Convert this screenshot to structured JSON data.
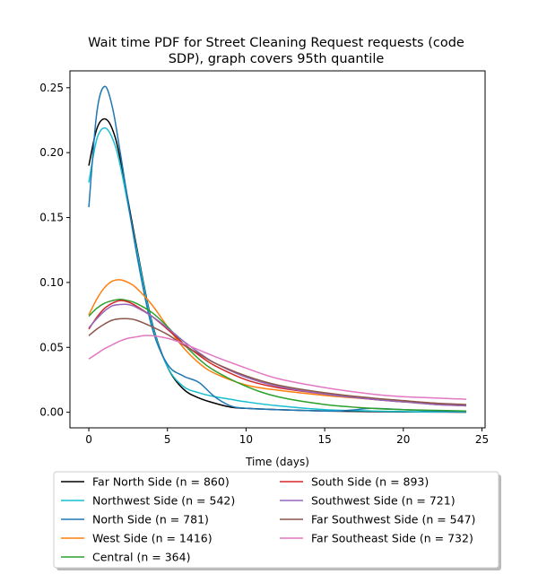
{
  "chart_data": {
    "type": "line",
    "title_lines": [
      "Wait time PDF for Street Cleaning Request  requests (code",
      "SDP), graph covers 95th quantile"
    ],
    "xlabel": "Time (days)",
    "ylabel": "",
    "xlim": [
      -1.2,
      25.2
    ],
    "ylim": [
      -0.012,
      0.263
    ],
    "xticks": [
      0,
      5,
      10,
      15,
      20,
      25
    ],
    "yticks": [
      0.0,
      0.05,
      0.1,
      0.15,
      0.2,
      0.25
    ],
    "xtick_labels": [
      "0",
      "5",
      "10",
      "15",
      "20",
      "25"
    ],
    "ytick_labels": [
      "0.00",
      "0.05",
      "0.10",
      "0.15",
      "0.20",
      "0.25"
    ],
    "grid": false,
    "legend_position": "below",
    "legend_columns": 2,
    "series": [
      {
        "name": "Far North Side (n = 860)",
        "color": "#000000",
        "x": [
          0,
          0.5,
          1,
          1.5,
          2,
          3,
          4,
          5,
          6,
          7,
          8,
          9,
          10,
          12,
          15,
          18,
          20,
          22,
          24
        ],
        "y": [
          0.19,
          0.218,
          0.226,
          0.218,
          0.195,
          0.13,
          0.07,
          0.035,
          0.018,
          0.011,
          0.007,
          0.004,
          0.003,
          0.002,
          0.001,
          0.0005,
          0.0003,
          0.0002,
          0.0001
        ]
      },
      {
        "name": "Northwest Side (n = 542)",
        "color": "#17becf",
        "x": [
          0,
          0.5,
          1,
          1.5,
          2,
          3,
          4,
          5,
          6,
          7,
          8,
          9,
          10,
          12,
          15,
          18,
          20,
          22,
          24
        ],
        "y": [
          0.177,
          0.21,
          0.219,
          0.211,
          0.19,
          0.128,
          0.069,
          0.035,
          0.02,
          0.015,
          0.012,
          0.01,
          0.008,
          0.005,
          0.002,
          0.001,
          0.0005,
          0.0003,
          0.0002
        ]
      },
      {
        "name": "North Side (n = 781)",
        "color": "#1f77b4",
        "x": [
          0,
          0.5,
          1,
          1.5,
          2,
          3,
          4,
          5,
          6,
          7,
          8,
          9,
          10,
          12,
          15,
          16,
          17,
          18,
          20,
          22,
          24
        ],
        "y": [
          0.158,
          0.23,
          0.251,
          0.235,
          0.2,
          0.125,
          0.066,
          0.037,
          0.028,
          0.023,
          0.012,
          0.005,
          0.003,
          0.002,
          0.001,
          0.001,
          0.002,
          0.003,
          0.002,
          0.001,
          0.0005
        ]
      },
      {
        "name": "West Side (n = 1416)",
        "color": "#ff7f0e",
        "x": [
          0,
          0.5,
          1,
          1.5,
          2,
          2.5,
          3,
          4,
          5,
          6,
          7,
          8,
          10,
          12,
          15,
          18,
          20,
          22,
          24
        ],
        "y": [
          0.075,
          0.087,
          0.096,
          0.101,
          0.102,
          0.1,
          0.096,
          0.083,
          0.066,
          0.05,
          0.038,
          0.03,
          0.021,
          0.017,
          0.013,
          0.01,
          0.008,
          0.006,
          0.005
        ]
      },
      {
        "name": "Central (n = 364)",
        "color": "#2ca02c",
        "x": [
          0,
          0.5,
          1,
          1.5,
          2,
          2.5,
          3,
          4,
          5,
          6,
          7,
          8,
          10,
          12,
          15,
          18,
          20,
          22,
          24
        ],
        "y": [
          0.074,
          0.08,
          0.084,
          0.086,
          0.087,
          0.086,
          0.084,
          0.077,
          0.066,
          0.053,
          0.041,
          0.032,
          0.02,
          0.012,
          0.006,
          0.003,
          0.002,
          0.0015,
          0.001
        ]
      },
      {
        "name": "South Side (n = 893)",
        "color": "#d62728",
        "x": [
          0,
          0.5,
          1,
          1.5,
          2,
          2.5,
          3,
          4,
          5,
          6,
          7,
          8,
          10,
          12,
          15,
          18,
          20,
          22,
          24
        ],
        "y": [
          0.064,
          0.073,
          0.08,
          0.084,
          0.086,
          0.085,
          0.082,
          0.074,
          0.064,
          0.053,
          0.044,
          0.036,
          0.025,
          0.019,
          0.014,
          0.01,
          0.008,
          0.007,
          0.005
        ]
      },
      {
        "name": "Southwest Side (n = 721)",
        "color": "#9467bd",
        "x": [
          0,
          0.5,
          1,
          1.5,
          2,
          2.5,
          3,
          4,
          5,
          6,
          7,
          8,
          10,
          12,
          15,
          18,
          20,
          22,
          24
        ],
        "y": [
          0.065,
          0.072,
          0.078,
          0.082,
          0.083,
          0.083,
          0.081,
          0.074,
          0.065,
          0.055,
          0.046,
          0.038,
          0.027,
          0.02,
          0.014,
          0.01,
          0.008,
          0.006,
          0.005
        ]
      },
      {
        "name": "Far Southwest Side (n = 547)",
        "color": "#8c564b",
        "x": [
          0,
          0.5,
          1,
          1.5,
          2,
          2.5,
          3,
          4,
          5,
          6,
          7,
          8,
          10,
          12,
          15,
          18,
          20,
          22,
          24
        ],
        "y": [
          0.059,
          0.064,
          0.068,
          0.071,
          0.072,
          0.072,
          0.071,
          0.066,
          0.06,
          0.052,
          0.045,
          0.038,
          0.028,
          0.021,
          0.015,
          0.011,
          0.009,
          0.007,
          0.006
        ]
      },
      {
        "name": "Far Southeast Side (n = 732)",
        "color": "#e377c2",
        "x": [
          0,
          0.5,
          1,
          1.5,
          2,
          2.5,
          3,
          3.5,
          4,
          5,
          6,
          7,
          8,
          10,
          12,
          15,
          18,
          20,
          22,
          24
        ],
        "y": [
          0.041,
          0.045,
          0.049,
          0.052,
          0.055,
          0.057,
          0.058,
          0.059,
          0.059,
          0.057,
          0.053,
          0.048,
          0.043,
          0.034,
          0.026,
          0.019,
          0.014,
          0.012,
          0.011,
          0.01
        ]
      }
    ]
  }
}
